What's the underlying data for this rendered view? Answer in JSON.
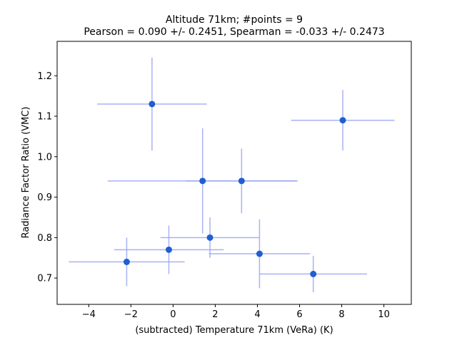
{
  "chart_data": {
    "type": "scatter",
    "title_line1": "Altitude 71km;  #points =  9",
    "title_line2": "Pearson =  0.090 +/-  0.2451, Spearman = -0.033 +/-  0.2473",
    "xlabel": "(subtracted) Temperature 71km (VeRa) (K)",
    "ylabel": "Radiance Factor Ratio (VMC)",
    "xlim": [
      -5.5,
      11.3
    ],
    "ylim": [
      0.635,
      1.285
    ],
    "xticks": [
      -4,
      -2,
      0,
      2,
      4,
      6,
      8,
      10
    ],
    "xtick_labels": [
      "−4",
      "−2",
      "0",
      "2",
      "4",
      "6",
      "8",
      "10"
    ],
    "yticks": [
      0.7,
      0.8,
      0.9,
      1.0,
      1.1,
      1.2
    ],
    "ytick_labels": [
      "0.7",
      "0.8",
      "0.9",
      "1.0",
      "1.1",
      "1.2"
    ],
    "grid": false,
    "colors": {
      "marker": "#1f5fcf",
      "errorbar": "#9aa4f2"
    },
    "points": [
      {
        "x": -1.0,
        "y": 1.13,
        "xerr": 2.6,
        "yerr": 0.115
      },
      {
        "x": 8.05,
        "y": 1.09,
        "xerr": 2.45,
        "yerr": 0.075
      },
      {
        "x": 1.4,
        "y": 0.94,
        "xerr": 4.5,
        "yerr": 0.13
      },
      {
        "x": 3.25,
        "y": 0.94,
        "xerr": 2.65,
        "yerr": 0.08
      },
      {
        "x": 1.75,
        "y": 0.8,
        "xerr": 2.35,
        "yerr": 0.05
      },
      {
        "x": -0.2,
        "y": 0.77,
        "xerr": 2.6,
        "yerr": 0.06
      },
      {
        "x": -2.2,
        "y": 0.74,
        "xerr": 2.75,
        "yerr": 0.06
      },
      {
        "x": 4.1,
        "y": 0.76,
        "xerr": 2.4,
        "yerr": 0.085
      },
      {
        "x": 6.65,
        "y": 0.71,
        "xerr": 2.55,
        "yerr": 0.045
      }
    ]
  }
}
